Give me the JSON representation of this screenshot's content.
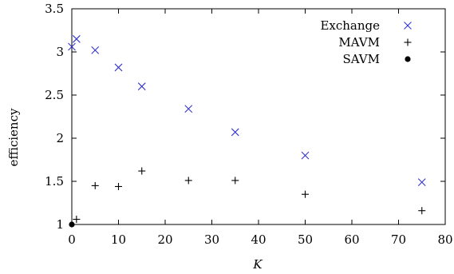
{
  "chart_data": {
    "type": "scatter",
    "xlabel": "K",
    "ylabel": "efficiency",
    "xlim": [
      0,
      80
    ],
    "ylim": [
      1,
      3.5
    ],
    "xticks": [
      "0",
      "10",
      "20",
      "30",
      "40",
      "50",
      "60",
      "70",
      "80"
    ],
    "yticks": [
      "1",
      "1.5",
      "2",
      "2.5",
      "3",
      "3.5"
    ],
    "grid": false,
    "legend_position": "top-right",
    "series": [
      {
        "name": "Exchange",
        "marker": "x",
        "color": "#3333cc",
        "points": [
          [
            0,
            3.06
          ],
          [
            1,
            3.15
          ],
          [
            5,
            3.02
          ],
          [
            10,
            2.82
          ],
          [
            15,
            2.6
          ],
          [
            25,
            2.34
          ],
          [
            35,
            2.07
          ],
          [
            50,
            1.8
          ],
          [
            75,
            1.49
          ]
        ]
      },
      {
        "name": "MAVM",
        "marker": "+",
        "color": "#000000",
        "points": [
          [
            1,
            1.06
          ],
          [
            5,
            1.45
          ],
          [
            10,
            1.44
          ],
          [
            15,
            1.62
          ],
          [
            25,
            1.51
          ],
          [
            35,
            1.51
          ],
          [
            50,
            1.35
          ],
          [
            75,
            1.16
          ]
        ]
      },
      {
        "name": "SAVM",
        "marker": "dot",
        "color": "#000000",
        "points": [
          [
            0,
            1.0
          ]
        ]
      }
    ]
  }
}
